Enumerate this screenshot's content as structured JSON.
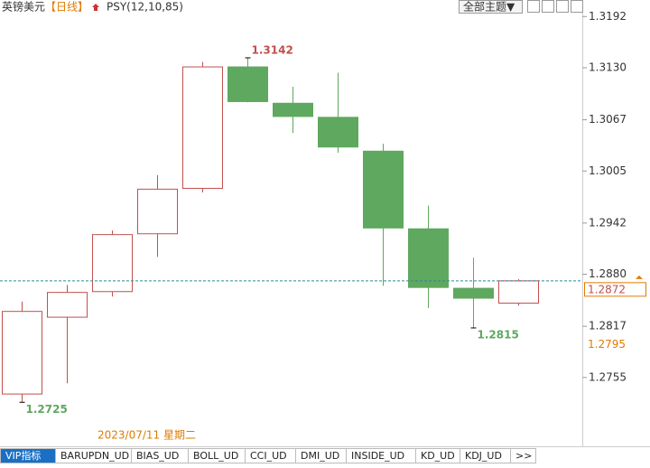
{
  "chart_data": {
    "type": "candlestick",
    "symbol": "英镑美元",
    "period": "【日线】",
    "indicator": "PSY(12,10,85)",
    "theme_button": "全部主题▼",
    "crosshair_date": "2023/07/11 星期二",
    "open": [
      1.2735,
      1.2828,
      1.2859,
      1.2929,
      1.2984,
      1.3131,
      1.3087,
      1.307,
      1.3029,
      1.2935,
      1.2863,
      1.2845
    ],
    "high": [
      1.2847,
      1.2867,
      1.2933,
      1.3,
      1.3137,
      1.3142,
      1.3107,
      1.3124,
      1.3038,
      1.2963,
      1.29,
      1.2874
    ],
    "low": [
      1.2725,
      1.2748,
      1.2853,
      1.2901,
      1.2979,
      1.3088,
      1.3051,
      1.3027,
      1.2866,
      1.2839,
      1.2815,
      1.2842
    ],
    "close": [
      1.2835,
      1.2858,
      1.2928,
      1.2983,
      1.3131,
      1.3089,
      1.3071,
      1.3034,
      1.2936,
      1.2864,
      1.2851,
      1.2872
    ],
    "up_color": "#c0504d",
    "down_color": "#5fa85f",
    "marker_value": 1.2795,
    "ylim": [
      1.2687,
      1.3212
    ],
    "yticks": [
      1.3192,
      {
        "value": 1.313,
        "label": "1.3130"
      },
      1.3067,
      1.3005,
      1.2942,
      {
        "value": 1.288,
        "label": "1.2880"
      },
      1.2817,
      1.2755
    ],
    "tabs": [
      "VIP指标",
      "BARUPDN_UD",
      "BIAS_UD",
      "BOLL_UD",
      "CCI_UD",
      "DMI_UD",
      "INSIDE_UD",
      "KD_UD",
      "KDJ_UD",
      ">>"
    ]
  }
}
